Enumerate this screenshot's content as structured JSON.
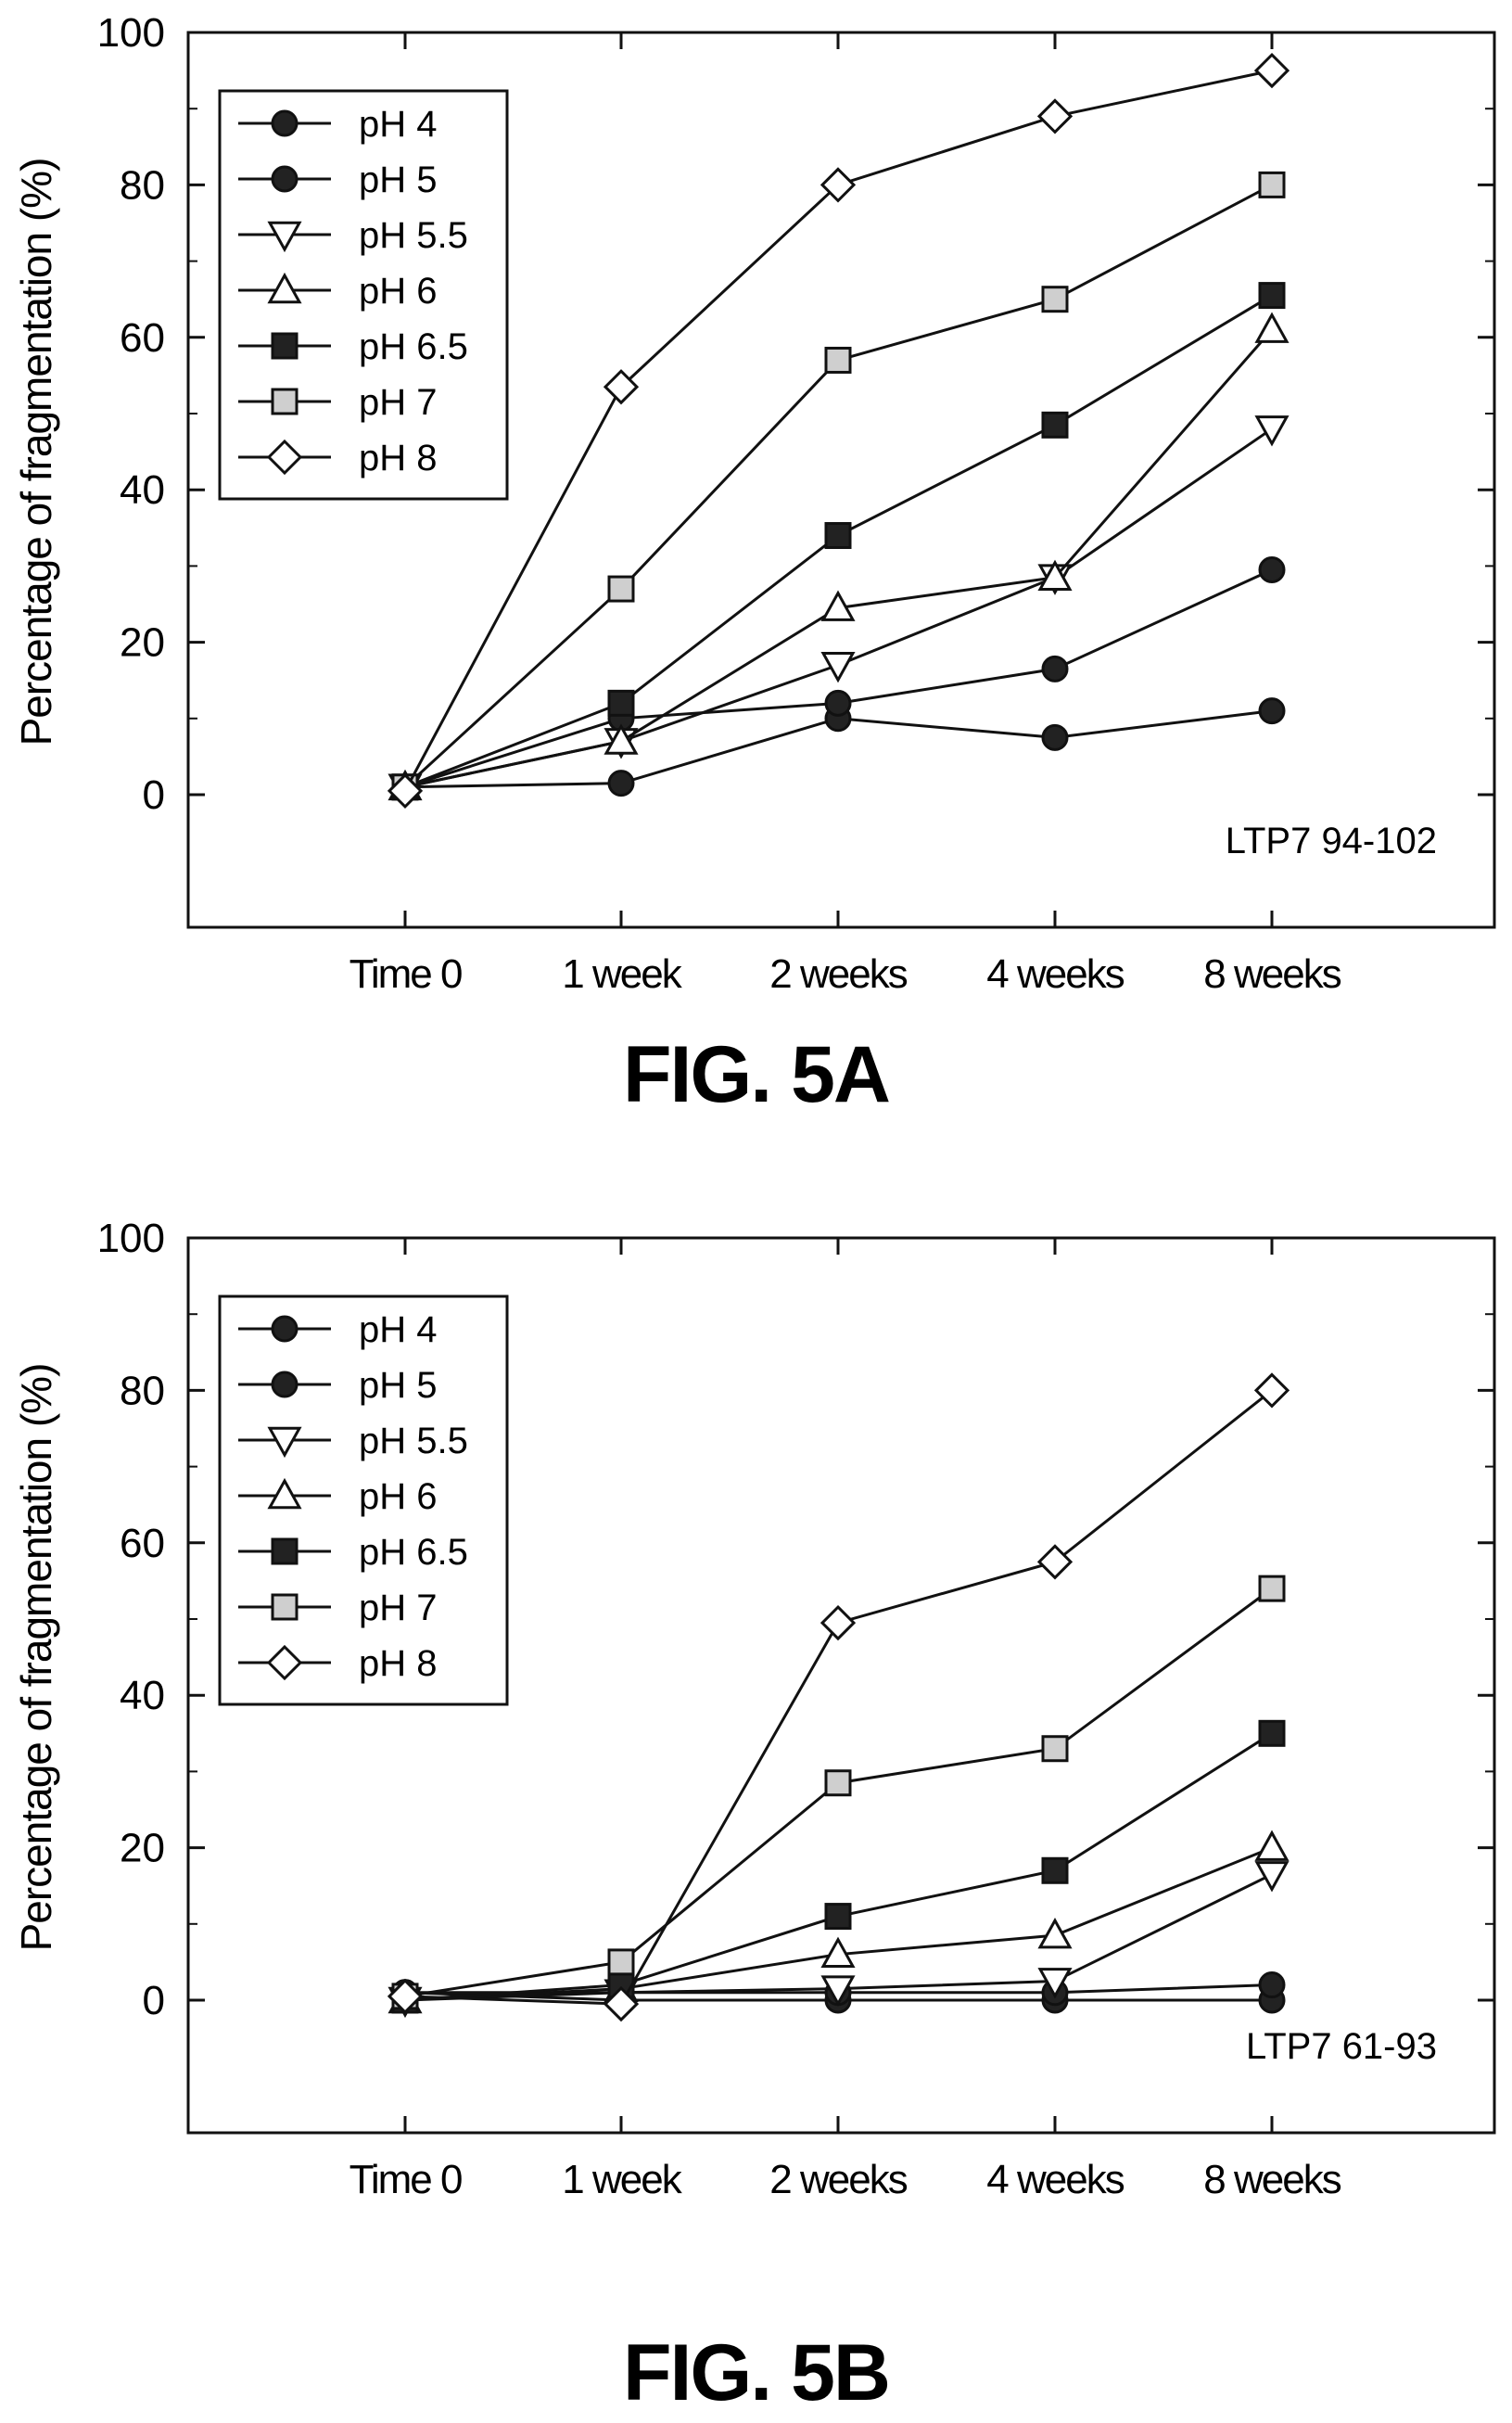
{
  "figures": [
    {
      "caption": "FIG. 5A"
    },
    {
      "caption": "FIG. 5B"
    }
  ],
  "chart_data": [
    {
      "type": "line",
      "title": "",
      "xlabel": "",
      "ylabel": "Percentage of fragmentation (%)",
      "categories": [
        "Time 0",
        "1 week",
        "2 weeks",
        "4 weeks",
        "8 weeks"
      ],
      "ylim": [
        -17,
        100
      ],
      "yticks": [
        0,
        20,
        40,
        60,
        80,
        100
      ],
      "grid": false,
      "legend": "top-left",
      "annotation": "LTP7 94-102",
      "series": [
        {
          "name": "pH 4",
          "marker": "circle",
          "fill": "#222222",
          "values": [
            1,
            1.5,
            10,
            7.5,
            11
          ]
        },
        {
          "name": "pH 5",
          "marker": "circle",
          "fill": "#222222",
          "values": [
            1,
            10,
            12,
            16.5,
            29.5
          ]
        },
        {
          "name": "pH 5.5",
          "marker": "triangle-down",
          "fill": "#ffffff",
          "values": [
            1,
            7,
            17,
            28.5,
            48
          ]
        },
        {
          "name": "pH 6",
          "marker": "triangle-up",
          "fill": "#ffffff",
          "values": [
            1,
            7,
            24.5,
            28.5,
            61
          ]
        },
        {
          "name": "pH 6.5",
          "marker": "square",
          "fill": "#222222",
          "values": [
            1,
            12,
            34,
            48.5,
            65.5
          ]
        },
        {
          "name": "pH 7",
          "marker": "square",
          "fill": "#cfcfcf",
          "values": [
            1,
            27,
            57,
            65,
            80
          ]
        },
        {
          "name": "pH 8",
          "marker": "diamond",
          "fill": "#ffffff",
          "values": [
            0.5,
            53.5,
            80,
            89,
            95
          ]
        }
      ]
    },
    {
      "type": "line",
      "title": "",
      "xlabel": "",
      "ylabel": "Percentage of fragmentation (%)",
      "categories": [
        "Time 0",
        "1 week",
        "2 weeks",
        "4 weeks",
        "8 weeks"
      ],
      "ylim": [
        -17,
        100
      ],
      "yticks": [
        0,
        20,
        40,
        60,
        80,
        100
      ],
      "grid": false,
      "legend": "top-left",
      "annotation": "LTP7 61-93",
      "series": [
        {
          "name": "pH 4",
          "marker": "circle",
          "fill": "#222222",
          "values": [
            1,
            0,
            0,
            0,
            0
          ]
        },
        {
          "name": "pH 5",
          "marker": "circle",
          "fill": "#222222",
          "values": [
            1,
            1,
            1,
            1,
            2
          ]
        },
        {
          "name": "pH 5.5",
          "marker": "triangle-down",
          "fill": "#ffffff",
          "values": [
            0,
            1,
            1.5,
            2.5,
            16.5
          ]
        },
        {
          "name": "pH 6",
          "marker": "triangle-up",
          "fill": "#ffffff",
          "values": [
            0,
            1.5,
            6,
            8.5,
            20
          ]
        },
        {
          "name": "pH 6.5",
          "marker": "square",
          "fill": "#222222",
          "values": [
            0,
            2,
            11,
            17,
            35
          ]
        },
        {
          "name": "pH 7",
          "marker": "square",
          "fill": "#cfcfcf",
          "values": [
            0.5,
            5,
            28.5,
            33,
            54
          ]
        },
        {
          "name": "pH 8",
          "marker": "diamond",
          "fill": "#ffffff",
          "values": [
            0.5,
            -0.5,
            49.5,
            57.5,
            80
          ]
        }
      ]
    }
  ]
}
